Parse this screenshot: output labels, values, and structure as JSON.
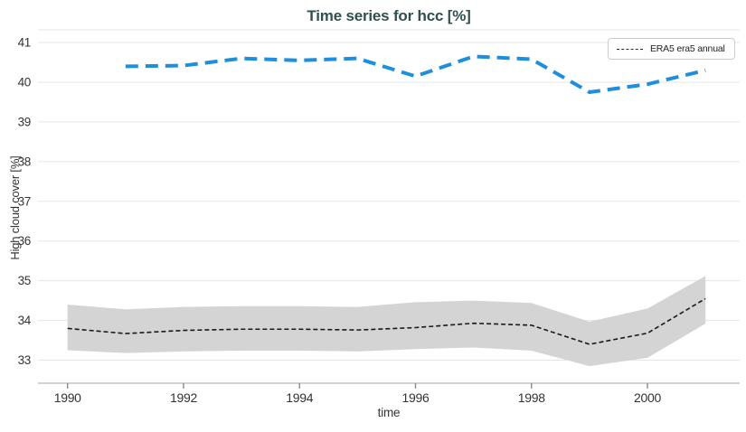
{
  "title": "Time series for hcc [%]",
  "axes": {
    "y_title": "High cloud cover [%]",
    "x_title": "time"
  },
  "legend": {
    "items": [
      {
        "label": "ERA5 era5 annual",
        "sample": "black-dashed-line"
      }
    ]
  },
  "colors": {
    "title_text": "#30504f",
    "blue_line": "#1e8fdd",
    "era5_line": "#1a1a1a",
    "band_fill": "#d4d4d4",
    "gridline": "#e5e5e5",
    "axis_line": "#c4c4c4",
    "tick_mark": "#8a8a8a",
    "tick_text": "#333333"
  },
  "chart_data": {
    "type": "line",
    "title": "Time series for hcc [%]",
    "xlabel": "time",
    "ylabel": "High cloud cover [%]",
    "xlim": [
      1989.49,
      2001.59
    ],
    "ylim": [
      32.42,
      41.32
    ],
    "xticks": [
      1990,
      1992,
      1994,
      1996,
      1998,
      2000
    ],
    "yticks": [
      33,
      34,
      35,
      36,
      37,
      38,
      39,
      40,
      41
    ],
    "grid": true,
    "legend_position": "top-right",
    "series": [
      {
        "name": "unlabeled blue dashed series",
        "color": "#1e8fdd",
        "dash": "14 8",
        "width": 4,
        "x": [
          1991,
          1992,
          1993,
          1994,
          1995,
          1996,
          1997,
          1998,
          1999,
          2000,
          2001
        ],
        "y": [
          40.4,
          40.42,
          40.6,
          40.55,
          40.6,
          40.15,
          40.65,
          40.58,
          39.75,
          39.95,
          40.3
        ]
      },
      {
        "name": "ERA5 era5 annual",
        "color": "#1a1a1a",
        "dash": "5 3",
        "width": 1.6,
        "x": [
          1990,
          1991,
          1992,
          1993,
          1994,
          1995,
          1996,
          1997,
          1998,
          1999,
          2000,
          2001
        ],
        "y": [
          33.8,
          33.67,
          33.75,
          33.78,
          33.78,
          33.76,
          33.82,
          33.93,
          33.88,
          33.4,
          33.68,
          34.55
        ],
        "band_upper": [
          34.4,
          34.28,
          34.34,
          34.36,
          34.36,
          34.34,
          34.46,
          34.5,
          34.44,
          33.97,
          34.3,
          35.12
        ],
        "band_lower": [
          33.25,
          33.18,
          33.22,
          33.24,
          33.24,
          33.22,
          33.28,
          33.32,
          33.24,
          32.85,
          33.06,
          33.92
        ],
        "band_color": "#d4d4d4"
      }
    ]
  }
}
